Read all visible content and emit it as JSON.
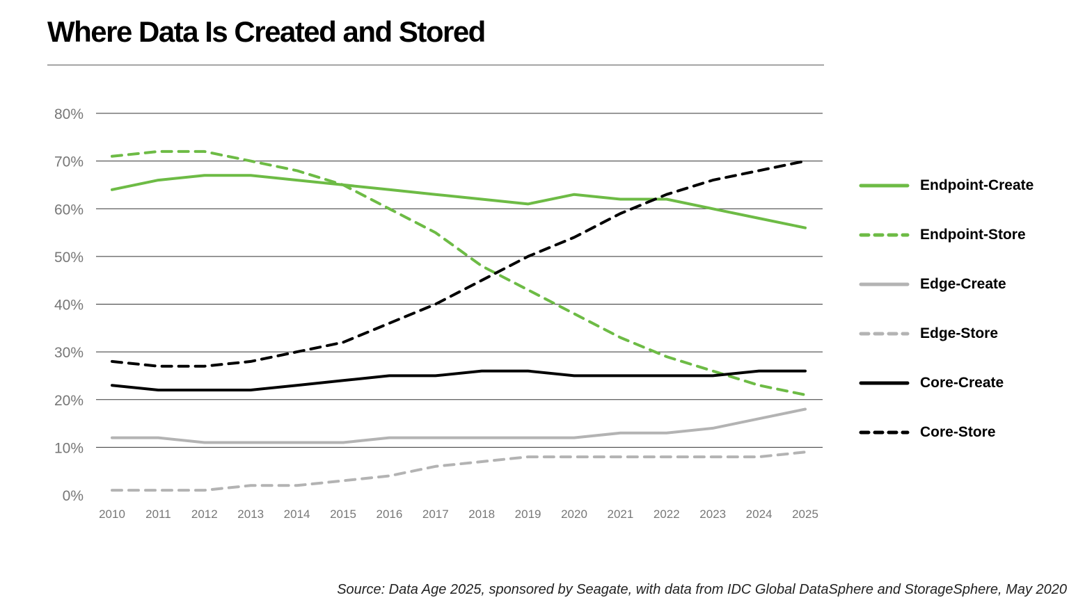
{
  "title": "Where Data Is Created and Stored",
  "source": "Source: Data Age 2025, sponsored by Seagate, with data from IDC Global DataSphere and StorageSphere, May 2020",
  "chart_data": {
    "type": "line",
    "title": "Where Data Is Created and Stored",
    "xlabel": "",
    "ylabel": "",
    "categories": [
      "2010",
      "2011",
      "2012",
      "2013",
      "2014",
      "2015",
      "2016",
      "2017",
      "2018",
      "2019",
      "2020",
      "2021",
      "2022",
      "2023",
      "2024",
      "2025"
    ],
    "yticks": [
      "0%",
      "10%",
      "20%",
      "30%",
      "40%",
      "50%",
      "60%",
      "70%",
      "80%"
    ],
    "ylim": [
      0,
      80
    ],
    "grid": true,
    "legend_position": "right",
    "series": [
      {
        "name": "Endpoint-Create",
        "color": "#6dbb45",
        "dashed": false,
        "values": [
          64,
          66,
          67,
          67,
          66,
          65,
          64,
          63,
          62,
          61,
          63,
          62,
          62,
          60,
          58,
          56
        ]
      },
      {
        "name": "Endpoint-Store",
        "color": "#6dbb45",
        "dashed": true,
        "values": [
          71,
          72,
          72,
          70,
          68,
          65,
          60,
          55,
          48,
          43,
          38,
          33,
          29,
          26,
          23,
          21
        ]
      },
      {
        "name": "Edge-Create",
        "color": "#b3b3b3",
        "dashed": false,
        "values": [
          12,
          12,
          11,
          11,
          11,
          11,
          12,
          12,
          12,
          12,
          12,
          13,
          13,
          14,
          16,
          18
        ]
      },
      {
        "name": "Edge-Store",
        "color": "#b3b3b3",
        "dashed": true,
        "values": [
          1,
          1,
          1,
          2,
          2,
          3,
          4,
          6,
          7,
          8,
          8,
          8,
          8,
          8,
          8,
          9
        ]
      },
      {
        "name": "Core-Create",
        "color": "#000000",
        "dashed": false,
        "values": [
          23,
          22,
          22,
          22,
          23,
          24,
          25,
          25,
          26,
          26,
          25,
          25,
          25,
          25,
          26,
          26
        ]
      },
      {
        "name": "Core-Store",
        "color": "#000000",
        "dashed": true,
        "values": [
          28,
          27,
          27,
          28,
          30,
          32,
          36,
          40,
          45,
          50,
          54,
          59,
          63,
          66,
          68,
          70
        ]
      }
    ]
  }
}
